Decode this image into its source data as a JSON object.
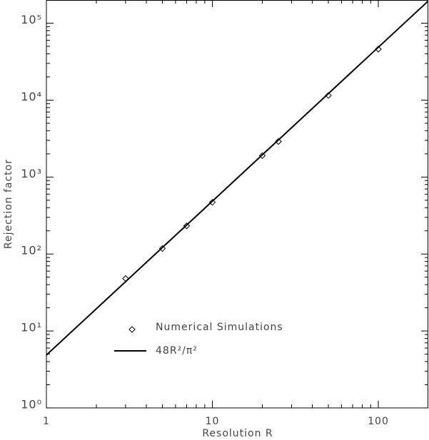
{
  "chart_data": {
    "type": "scatter",
    "x_label": "Resolution R",
    "y_label": "Rejection factor",
    "xscale": "log",
    "yscale": "log",
    "xlim": [
      1,
      200
    ],
    "ylim": [
      1,
      200000
    ],
    "xticks": [
      1,
      10,
      100
    ],
    "yticks": [
      {
        "value": 1,
        "label": "10⁰"
      },
      {
        "value": 10,
        "label": "10¹"
      },
      {
        "value": 100,
        "label": "10²"
      },
      {
        "value": 1000,
        "label": "10³"
      },
      {
        "value": 10000,
        "label": "10⁴"
      },
      {
        "value": 100000,
        "label": "10⁵"
      }
    ],
    "series": [
      {
        "name": "Numerical Simulations",
        "type": "scatter",
        "marker": "diamond",
        "color": "#000000",
        "x": [
          3,
          5,
          7,
          10,
          20,
          25,
          50,
          100
        ],
        "values": [
          48,
          118,
          232,
          470,
          1900,
          2900,
          11500,
          46000
        ]
      },
      {
        "name": "48R²/π²",
        "type": "line",
        "color": "#000000",
        "x": [
          1,
          200
        ],
        "values": [
          4.86,
          194540
        ]
      }
    ]
  }
}
